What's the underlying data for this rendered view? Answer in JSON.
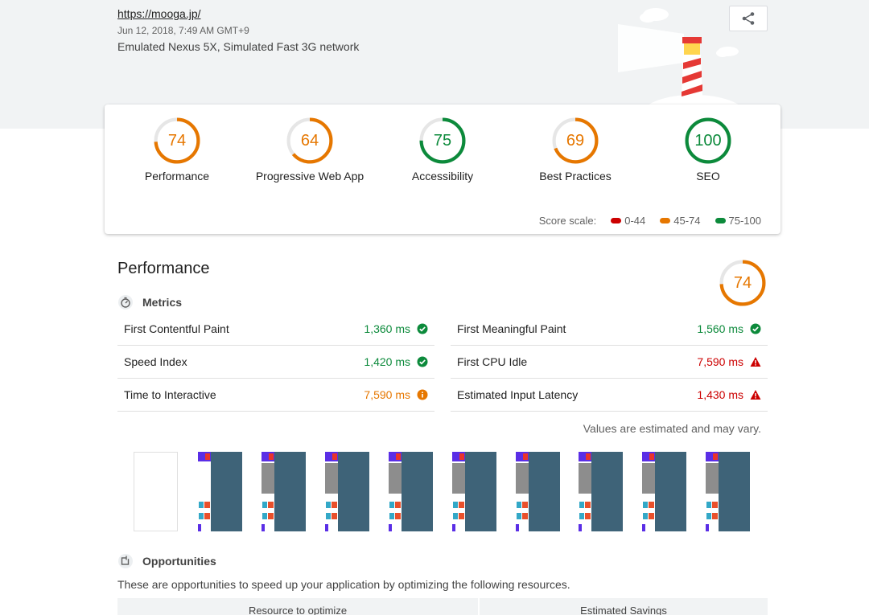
{
  "header": {
    "url": "https://mooga.jp/",
    "date": "Jun 12, 2018, 7:49 AM GMT+9",
    "environment": "Emulated Nexus 5X, Simulated Fast 3G network",
    "share_icon": "share-icon"
  },
  "colors": {
    "fail": "#cc0000",
    "average": "#e67700",
    "pass": "#0c8a3b",
    "track": "#e6e6e6"
  },
  "scores": [
    {
      "label": "Performance",
      "value": "74",
      "score": 74,
      "color": "#e67700"
    },
    {
      "label": "Progressive Web App",
      "value": "64",
      "score": 64,
      "color": "#e67700"
    },
    {
      "label": "Accessibility",
      "value": "75",
      "score": 75,
      "color": "#0c8a3b"
    },
    {
      "label": "Best Practices",
      "value": "69",
      "score": 69,
      "color": "#e67700"
    },
    {
      "label": "SEO",
      "value": "100",
      "score": 100,
      "color": "#0c8a3b"
    }
  ],
  "scale": {
    "label": "Score scale:",
    "items": [
      {
        "range": "0-44",
        "color": "#cc0000"
      },
      {
        "range": "45-74",
        "color": "#e67700"
      },
      {
        "range": "75-100",
        "color": "#0c8a3b"
      }
    ]
  },
  "performance": {
    "title": "Performance",
    "score": "74",
    "score_value": 74,
    "metrics_title": "Metrics",
    "metrics_icon": "stopwatch-icon",
    "left": [
      {
        "name": "First Contentful Paint",
        "value": "1,360 ms",
        "status": "pass"
      },
      {
        "name": "Speed Index",
        "value": "1,420 ms",
        "status": "pass"
      },
      {
        "name": "Time to Interactive",
        "value": "7,590 ms",
        "status": "average"
      }
    ],
    "right": [
      {
        "name": "First Meaningful Paint",
        "value": "1,560 ms",
        "status": "pass"
      },
      {
        "name": "First CPU Idle",
        "value": "7,590 ms",
        "status": "fail"
      },
      {
        "name": "Estimated Input Latency",
        "value": "1,430 ms",
        "status": "fail"
      }
    ],
    "note": "Values are estimated and may vary."
  },
  "opportunities": {
    "title": "Opportunities",
    "icon": "opportunity-icon",
    "description": "These are opportunities to speed up your application by optimizing the following resources.",
    "columns": [
      "Resource to optimize",
      "Estimated Savings"
    ]
  }
}
